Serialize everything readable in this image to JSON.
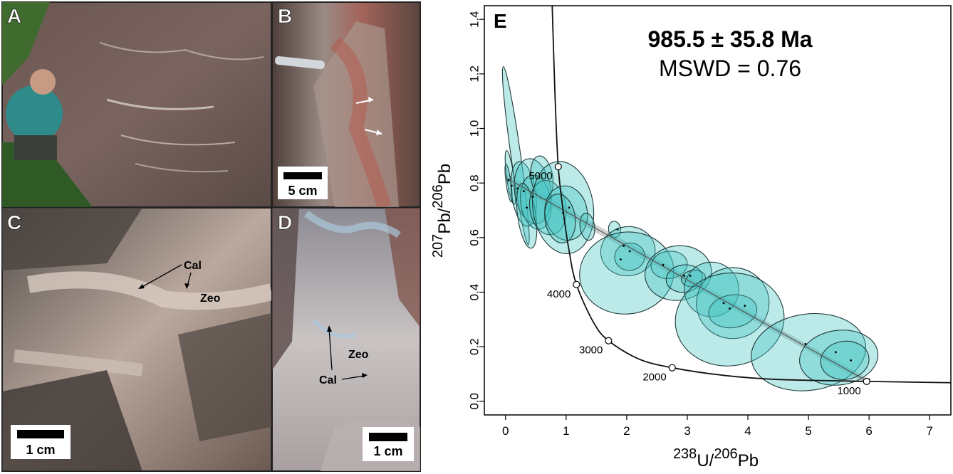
{
  "panels": {
    "A": {
      "letter": "A"
    },
    "B": {
      "letter": "B",
      "scale_bar": "5 cm"
    },
    "C": {
      "letter": "C",
      "scale_bar": "1 cm",
      "labels": {
        "cal": "Cal",
        "zeo": "Zeo"
      }
    },
    "D": {
      "letter": "D",
      "scale_bar": "1 cm",
      "labels": {
        "cal": "Cal",
        "zeo": "Zeo"
      }
    },
    "E": {
      "letter": "E"
    }
  },
  "colors": {
    "ellipse_fill": "#3fc4c0",
    "ellipse_stroke": "#1f3a3a",
    "regression_band": "#a9a9a9",
    "concordia": "#111111"
  },
  "chart_data": {
    "type": "scatter",
    "title": "985.5 ± 35.8 Ma",
    "subtitle": "MSWD = 0.76",
    "xlabel": {
      "pre": "238",
      "mid": "U/",
      "pre2": "206",
      "post": "Pb"
    },
    "ylabel": {
      "pre": "207",
      "mid": "Pb/",
      "pre2": "206",
      "post": "Pb"
    },
    "xlim": [
      -0.35,
      7.35
    ],
    "ylim": [
      -0.05,
      1.45
    ],
    "xticks": [
      "0",
      "1",
      "2",
      "3",
      "4",
      "5",
      "6",
      "7"
    ],
    "yticks": [
      "0.0",
      "0.2",
      "0.4",
      "0.6",
      "0.8",
      "1.0",
      "1.2",
      "1.4"
    ],
    "concordia_ages": [
      {
        "label": "1000",
        "x": 5.96,
        "y": 0.073
      },
      {
        "label": "2000",
        "x": 2.75,
        "y": 0.123
      },
      {
        "label": "3000",
        "x": 1.7,
        "y": 0.222
      },
      {
        "label": "4000",
        "x": 1.17,
        "y": 0.428
      },
      {
        "label": "5000",
        "x": 0.87,
        "y": 0.86
      }
    ],
    "concordia_curve": [
      [
        5.96,
        0.073
      ],
      [
        4.5,
        0.08
      ],
      [
        3.6,
        0.095
      ],
      [
        2.75,
        0.123
      ],
      [
        2.2,
        0.155
      ],
      [
        1.7,
        0.222
      ],
      [
        1.45,
        0.29
      ],
      [
        1.17,
        0.428
      ],
      [
        1.05,
        0.55
      ],
      [
        0.95,
        0.7
      ],
      [
        0.87,
        0.86
      ],
      [
        0.82,
        1.1
      ],
      [
        0.77,
        1.45
      ]
    ],
    "concordia_tail": [
      [
        5.96,
        0.073
      ],
      [
        7.35,
        0.068
      ]
    ],
    "regression": {
      "x": [
        0.0,
        6.0
      ],
      "y": [
        0.82,
        0.07
      ]
    },
    "ellipses": [
      {
        "x": 0.17,
        "y": 0.9,
        "sx": 0.08,
        "sy": 0.33
      },
      {
        "x": 0.08,
        "y": 0.82,
        "sx": 0.06,
        "sy": 0.1
      },
      {
        "x": 0.05,
        "y": 0.8,
        "sx": 0.04,
        "sy": 0.07
      },
      {
        "x": 0.3,
        "y": 0.76,
        "sx": 0.2,
        "sy": 0.12
      },
      {
        "x": 0.45,
        "y": 0.77,
        "sx": 0.3,
        "sy": 0.12
      },
      {
        "x": 0.5,
        "y": 0.73,
        "sx": 0.25,
        "sy": 0.1
      },
      {
        "x": 0.35,
        "y": 0.68,
        "sx": 0.15,
        "sy": 0.12
      },
      {
        "x": 0.6,
        "y": 0.82,
        "sx": 0.18,
        "sy": 0.08
      },
      {
        "x": 0.7,
        "y": 0.71,
        "sx": 0.3,
        "sy": 0.1
      },
      {
        "x": 0.95,
        "y": 0.71,
        "sx": 0.5,
        "sy": 0.17
      },
      {
        "x": 1.0,
        "y": 0.69,
        "sx": 0.35,
        "sy": 0.1
      },
      {
        "x": 0.9,
        "y": 0.67,
        "sx": 0.25,
        "sy": 0.09
      },
      {
        "x": 1.35,
        "y": 0.64,
        "sx": 0.12,
        "sy": 0.05
      },
      {
        "x": 1.8,
        "y": 0.63,
        "sx": 0.1,
        "sy": 0.03
      },
      {
        "x": 2.02,
        "y": 0.55,
        "sx": 0.45,
        "sy": 0.09
      },
      {
        "x": 2.05,
        "y": 0.53,
        "sx": 0.25,
        "sy": 0.05
      },
      {
        "x": 2.0,
        "y": 0.47,
        "sx": 0.78,
        "sy": 0.15
      },
      {
        "x": 2.7,
        "y": 0.5,
        "sx": 0.3,
        "sy": 0.05
      },
      {
        "x": 2.85,
        "y": 0.47,
        "sx": 0.55,
        "sy": 0.1
      },
      {
        "x": 2.95,
        "y": 0.45,
        "sx": 0.3,
        "sy": 0.05
      },
      {
        "x": 3.1,
        "y": 0.45,
        "sx": 0.2,
        "sy": 0.03
      },
      {
        "x": 3.4,
        "y": 0.41,
        "sx": 0.45,
        "sy": 0.1
      },
      {
        "x": 3.75,
        "y": 0.36,
        "sx": 0.6,
        "sy": 0.13
      },
      {
        "x": 3.75,
        "y": 0.33,
        "sx": 0.4,
        "sy": 0.06
      },
      {
        "x": 3.7,
        "y": 0.3,
        "sx": 0.9,
        "sy": 0.17
      },
      {
        "x": 5.0,
        "y": 0.18,
        "sx": 0.95,
        "sy": 0.14
      },
      {
        "x": 5.5,
        "y": 0.16,
        "sx": 0.65,
        "sy": 0.1
      },
      {
        "x": 5.6,
        "y": 0.15,
        "sx": 0.4,
        "sy": 0.07
      }
    ],
    "ellipse_tilt_deg": -8,
    "analysis_points": [
      [
        0.05,
        0.81
      ],
      [
        0.1,
        0.79
      ],
      [
        0.2,
        0.78
      ],
      [
        0.3,
        0.77
      ],
      [
        0.45,
        0.75
      ],
      [
        0.35,
        0.71
      ],
      [
        0.95,
        0.69
      ],
      [
        1.05,
        0.71
      ],
      [
        1.85,
        0.63
      ],
      [
        1.95,
        0.57
      ],
      [
        2.05,
        0.55
      ],
      [
        1.9,
        0.52
      ],
      [
        2.6,
        0.5
      ],
      [
        2.95,
        0.46
      ],
      [
        3.05,
        0.46
      ],
      [
        3.6,
        0.36
      ],
      [
        3.7,
        0.34
      ],
      [
        3.95,
        0.35
      ],
      [
        4.95,
        0.21
      ],
      [
        5.45,
        0.18
      ],
      [
        5.7,
        0.15
      ],
      [
        6.0,
        0.08
      ]
    ]
  }
}
